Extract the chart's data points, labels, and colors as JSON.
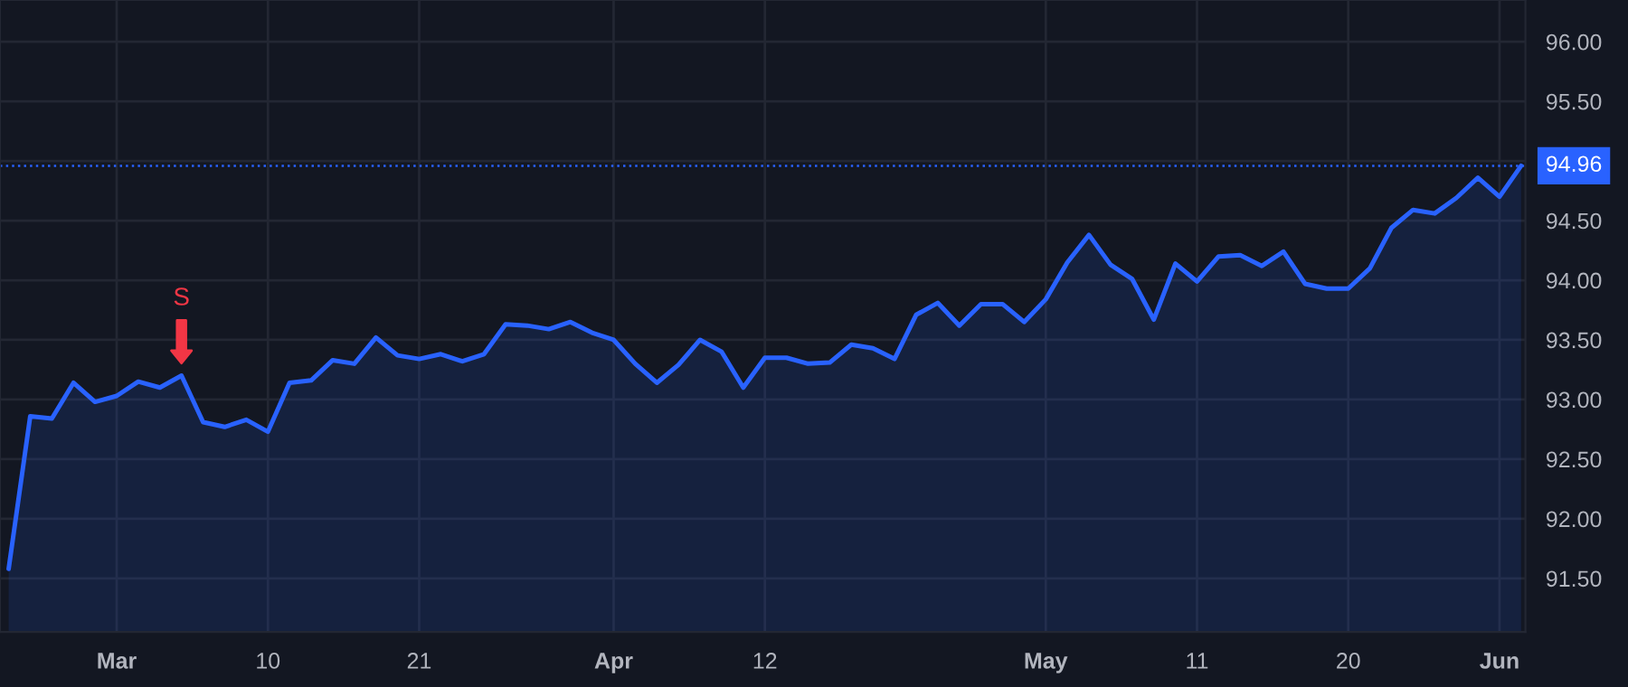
{
  "chart_data": {
    "type": "area",
    "categories": [
      null,
      null,
      null,
      null,
      null,
      "Mar",
      null,
      null,
      null,
      null,
      null,
      null,
      "10",
      null,
      null,
      null,
      null,
      null,
      null,
      "21",
      null,
      null,
      null,
      null,
      null,
      null,
      null,
      null,
      "Apr",
      null,
      null,
      null,
      null,
      null,
      null,
      "12",
      null,
      null,
      null,
      null,
      null,
      null,
      null,
      null,
      null,
      null,
      null,
      null,
      "May",
      null,
      null,
      null,
      null,
      null,
      null,
      "11",
      null,
      null,
      null,
      null,
      null,
      null,
      "20",
      null,
      null,
      null,
      null,
      null,
      null,
      "Jun",
      null
    ],
    "series": [
      {
        "color": "#2962ff",
        "values": [
          91.58,
          92.86,
          92.84,
          93.14,
          92.98,
          93.03,
          93.15,
          93.1,
          93.2,
          92.81,
          92.77,
          92.83,
          92.73,
          93.14,
          93.16,
          93.33,
          93.3,
          93.52,
          93.37,
          93.34,
          93.38,
          93.32,
          93.38,
          93.63,
          93.62,
          93.59,
          93.65,
          93.56,
          93.5,
          93.3,
          93.14,
          93.29,
          93.5,
          93.4,
          93.1,
          93.35,
          93.35,
          93.3,
          93.31,
          93.46,
          93.43,
          93.34,
          93.71,
          93.81,
          93.62,
          93.8,
          93.8,
          93.65,
          93.84,
          94.15,
          94.38,
          94.13,
          94.01,
          93.67,
          94.14,
          93.99,
          94.2,
          94.21,
          94.12,
          94.24,
          93.97,
          93.93,
          93.93,
          94.1,
          94.44,
          94.59,
          94.56,
          94.69,
          94.86,
          94.7,
          94.96
        ]
      }
    ],
    "ylim": [
      91.05,
      96.35
    ],
    "yticks": [
      {
        "value": 91.5,
        "label": "91.50"
      },
      {
        "value": 92,
        "label": "92.00"
      },
      {
        "value": 92.5,
        "label": "92.50"
      },
      {
        "value": 93,
        "label": "93.00"
      },
      {
        "value": 93.5,
        "label": "93.50"
      },
      {
        "value": 94,
        "label": "94.00"
      },
      {
        "value": 94.5,
        "label": "94.50"
      },
      {
        "value": 95,
        "label": null
      },
      {
        "value": 95.5,
        "label": "95.50"
      },
      {
        "value": 96,
        "label": "96.00"
      }
    ],
    "ref_lines": [
      {
        "axis": "y",
        "value": 94.96,
        "label": "94.96",
        "color": "#2962ff",
        "line_style": "dotted"
      }
    ],
    "annotations": [
      {
        "text": "S",
        "y": 93.2
      }
    ],
    "grid": true,
    "legend": false
  }
}
